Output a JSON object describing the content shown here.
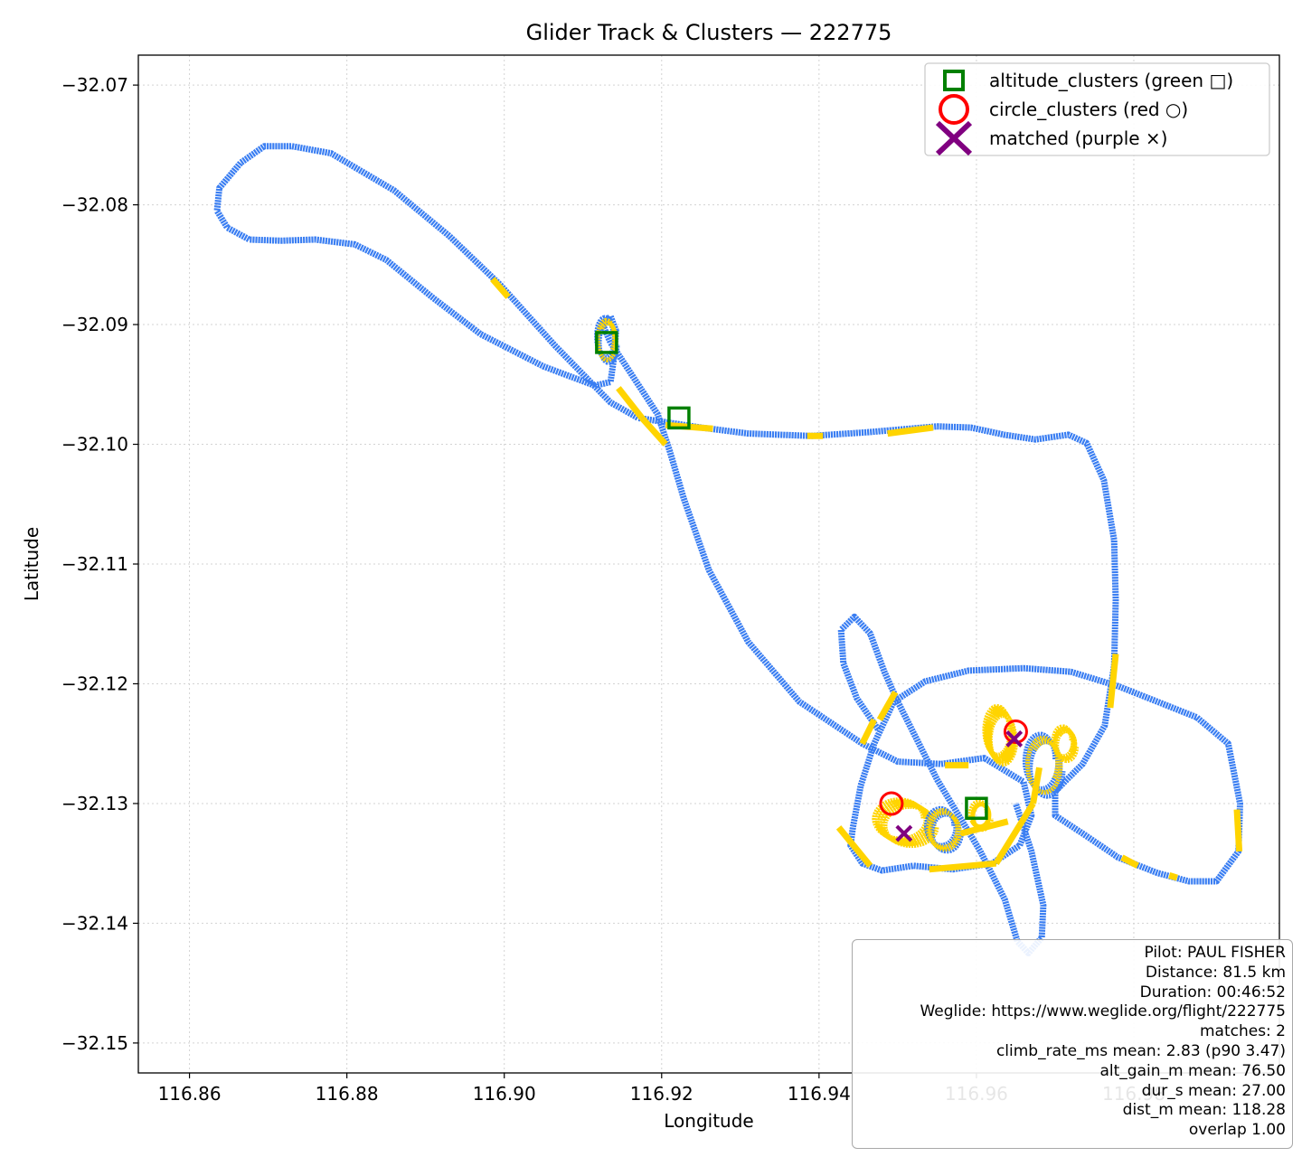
{
  "chart_data": {
    "type": "line",
    "title": "Glider Track & Clusters — 222775",
    "xlabel": "Longitude",
    "ylabel": "Latitude",
    "xlim": [
      116.8535,
      116.9985
    ],
    "ylim": [
      -32.1525,
      -32.0675
    ],
    "xticks": [
      116.86,
      116.88,
      116.9,
      116.92,
      116.94,
      116.96,
      116.98
    ],
    "xtick_labels": [
      "116.86",
      "116.88",
      "116.90",
      "116.92",
      "116.94",
      "116.96",
      "116.98"
    ],
    "yticks": [
      -32.07,
      -32.08,
      -32.09,
      -32.1,
      -32.11,
      -32.12,
      -32.13,
      -32.14,
      -32.15
    ],
    "ytick_labels": [
      "−32.07",
      "−32.08",
      "−32.09",
      "−32.10",
      "−32.11",
      "−32.12",
      "−32.13",
      "−32.14",
      "−32.15"
    ],
    "grid": true,
    "legend_position": "top-right",
    "colors": {
      "track": "#3a7ef2",
      "climb": "#ffd400",
      "altitude": "#008000",
      "circle": "#ff0000",
      "matched": "#800080"
    },
    "track": [
      [
        116.9115,
        -32.0951
      ],
      [
        116.905,
        -32.0935
      ],
      [
        116.897,
        -32.0908
      ],
      [
        116.891,
        -32.0878
      ],
      [
        116.885,
        -32.0846
      ],
      [
        116.881,
        -32.0833
      ],
      [
        116.876,
        -32.0829
      ],
      [
        116.8716,
        -32.083
      ],
      [
        116.8676,
        -32.0829
      ],
      [
        116.8648,
        -32.0819
      ],
      [
        116.8635,
        -32.0805
      ],
      [
        116.8638,
        -32.0786
      ],
      [
        116.8665,
        -32.0765
      ],
      [
        116.8695,
        -32.0751
      ],
      [
        116.873,
        -32.0751
      ],
      [
        116.878,
        -32.0757
      ],
      [
        116.886,
        -32.0788
      ],
      [
        116.893,
        -32.0826
      ],
      [
        116.8995,
        -32.0867
      ],
      [
        116.9065,
        -32.0918
      ],
      [
        116.9135,
        -32.0965
      ],
      [
        116.917,
        -32.0978
      ],
      [
        116.925,
        -32.0986
      ],
      [
        116.931,
        -32.0991
      ],
      [
        116.939,
        -32.0993
      ],
      [
        116.946,
        -32.099
      ],
      [
        116.955,
        -32.0985
      ],
      [
        116.9593,
        -32.0986
      ],
      [
        116.9635,
        -32.0992
      ],
      [
        116.9675,
        -32.0996
      ],
      [
        116.9717,
        -32.0992
      ],
      [
        116.974,
        -32.0999
      ],
      [
        116.9762,
        -32.103
      ],
      [
        116.9775,
        -32.108
      ],
      [
        116.9777,
        -32.113
      ],
      [
        116.9775,
        -32.1185
      ],
      [
        116.9763,
        -32.1235
      ],
      [
        116.9735,
        -32.1267
      ],
      [
        116.9715,
        -32.128
      ],
      [
        116.97,
        -32.129
      ],
      [
        116.97,
        -32.131
      ],
      [
        116.9735,
        -32.1325
      ],
      [
        116.978,
        -32.1345
      ],
      [
        116.983,
        -32.1358
      ],
      [
        116.987,
        -32.1365
      ],
      [
        116.9905,
        -32.1365
      ],
      [
        116.9933,
        -32.134
      ],
      [
        116.9935,
        -32.13
      ],
      [
        116.992,
        -32.125
      ],
      [
        116.988,
        -32.1228
      ],
      [
        116.983,
        -32.1215
      ],
      [
        116.978,
        -32.1202
      ],
      [
        116.972,
        -32.119
      ],
      [
        116.966,
        -32.1187
      ],
      [
        116.959,
        -32.1189
      ],
      [
        116.9535,
        -32.1198
      ],
      [
        116.9495,
        -32.1215
      ],
      [
        116.947,
        -32.125
      ],
      [
        116.9453,
        -32.1285
      ],
      [
        116.9443,
        -32.132
      ],
      [
        116.944,
        -32.1335
      ],
      [
        116.9455,
        -32.135
      ],
      [
        116.948,
        -32.1356
      ],
      [
        116.952,
        -32.1352
      ],
      [
        116.957,
        -32.1355
      ],
      [
        116.962,
        -32.135
      ],
      [
        116.9655,
        -32.1335
      ],
      [
        116.967,
        -32.131
      ],
      [
        116.966,
        -32.1282
      ],
      [
        116.961,
        -32.1262
      ],
      [
        116.9555,
        -32.1267
      ],
      [
        116.95,
        -32.1265
      ],
      [
        116.9455,
        -32.125
      ],
      [
        116.9375,
        -32.1215
      ],
      [
        116.931,
        -32.1165
      ],
      [
        116.926,
        -32.1105
      ],
      [
        116.9228,
        -32.1045
      ],
      [
        116.921,
        -32.1005
      ],
      [
        116.9195,
        -32.0975
      ],
      [
        116.916,
        -32.094
      ],
      [
        116.9135,
        -32.0915
      ],
      [
        116.9125,
        -32.09
      ],
      [
        116.9135,
        -32.0893
      ],
      [
        116.9142,
        -32.0905
      ],
      [
        116.914,
        -32.0925
      ],
      [
        116.9135,
        -32.0948
      ],
      [
        116.9115,
        -32.0951
      ]
    ],
    "loop_track": [
      [
        116.9475,
        -32.1238
      ],
      [
        116.9448,
        -32.1212
      ],
      [
        116.9431,
        -32.1183
      ],
      [
        116.9428,
        -32.1155
      ],
      [
        116.9445,
        -32.1144
      ],
      [
        116.9465,
        -32.1158
      ],
      [
        116.9483,
        -32.119
      ],
      [
        116.95,
        -32.1215
      ],
      [
        116.955,
        -32.128
      ],
      [
        116.9605,
        -32.134
      ],
      [
        116.9636,
        -32.138
      ],
      [
        116.9652,
        -32.1415
      ],
      [
        116.9666,
        -32.1425
      ],
      [
        116.9683,
        -32.1412
      ],
      [
        116.9685,
        -32.1385
      ],
      [
        116.967,
        -32.134
      ],
      [
        116.965,
        -32.13
      ]
    ],
    "circling_areas": [
      {
        "center": [
          116.9509,
          -32.1316
        ],
        "rx": 0.0032,
        "ry": 0.0016,
        "turns": 5
      },
      {
        "center": [
          116.9558,
          -32.1322
        ],
        "rx": 0.0018,
        "ry": 0.0015,
        "turns": 4
      },
      {
        "center": [
          116.963,
          -32.1243
        ],
        "rx": 0.0016,
        "ry": 0.002,
        "turns": 7
      },
      {
        "center": [
          116.9685,
          -32.1268
        ],
        "rx": 0.002,
        "ry": 0.0022,
        "turns": 3
      },
      {
        "center": [
          116.9712,
          -32.125
        ],
        "rx": 0.0012,
        "ry": 0.0012,
        "turns": 3
      },
      {
        "center": [
          116.913,
          -32.0913
        ],
        "rx": 0.0011,
        "ry": 0.0016,
        "turns": 3
      },
      {
        "center": [
          116.9605,
          -32.131
        ],
        "rx": 0.0011,
        "ry": 0.001,
        "turns": 2
      }
    ],
    "climb_segments": [
      [
        [
          116.8985,
          -32.0862
        ],
        [
          116.9005,
          -32.0877
        ]
      ],
      [
        [
          116.9145,
          -32.0953
        ],
        [
          116.9175,
          -32.0978
        ]
      ],
      [
        [
          116.9175,
          -32.0978
        ],
        [
          116.9205,
          -32.1
        ]
      ],
      [
        [
          116.9205,
          -32.0984
        ],
        [
          116.9265,
          -32.0987
        ]
      ],
      [
        [
          116.9385,
          -32.0993
        ],
        [
          116.9405,
          -32.0993
        ]
      ],
      [
        [
          116.9487,
          -32.0991
        ],
        [
          116.9545,
          -32.0986
        ]
      ],
      [
        [
          116.9777,
          -32.1175
        ],
        [
          116.977,
          -32.122
        ]
      ],
      [
        [
          116.9455,
          -32.125
        ],
        [
          116.947,
          -32.123
        ]
      ],
      [
        [
          116.956,
          -32.1268
        ],
        [
          116.959,
          -32.1268
        ]
      ],
      [
        [
          116.9497,
          -32.1207
        ],
        [
          116.9477,
          -32.123
        ]
      ],
      [
        [
          116.9931,
          -32.1305
        ],
        [
          116.9934,
          -32.134
        ]
      ],
      [
        [
          116.9785,
          -32.1345
        ],
        [
          116.9805,
          -32.1352
        ]
      ],
      [
        [
          116.9845,
          -32.136
        ],
        [
          116.9855,
          -32.1362
        ]
      ],
      [
        [
          116.9425,
          -32.132
        ],
        [
          116.9465,
          -32.1352
        ]
      ],
      [
        [
          116.954,
          -32.1355
        ],
        [
          116.9625,
          -32.135
        ]
      ],
      [
        [
          116.9625,
          -32.135
        ],
        [
          116.9672,
          -32.13
        ]
      ],
      [
        [
          116.9672,
          -32.13
        ],
        [
          116.968,
          -32.127
        ]
      ],
      [
        [
          116.958,
          -32.1325
        ],
        [
          116.964,
          -32.1315
        ]
      ]
    ],
    "altitude_clusters": [
      [
        116.913,
        -32.0915
      ],
      [
        116.9222,
        -32.0978
      ],
      [
        116.96,
        -32.1304
      ]
    ],
    "circle_clusters": [
      [
        116.9492,
        -32.13
      ],
      [
        116.965,
        -32.124
      ]
    ],
    "matched": [
      [
        116.9508,
        -32.1325
      ],
      [
        116.9648,
        -32.1246
      ]
    ],
    "legend": [
      {
        "key": "altitude",
        "label": "altitude_clusters (green □)"
      },
      {
        "key": "circle",
        "label": "circle_clusters (red ○)"
      },
      {
        "key": "matched",
        "label": "matched (purple ×)"
      }
    ]
  },
  "stats": [
    "Pilot: PAUL FISHER",
    "Distance: 81.5 km",
    "Duration: 00:46:52",
    "Weglide: https://www.weglide.org/flight/222775",
    "matches: 2",
    "climb_rate_ms mean: 2.83 (p90 3.47)",
    "alt_gain_m mean: 76.50",
    "dur_s mean: 27.00",
    "dist_m mean: 118.28",
    "overlap 1.00"
  ]
}
